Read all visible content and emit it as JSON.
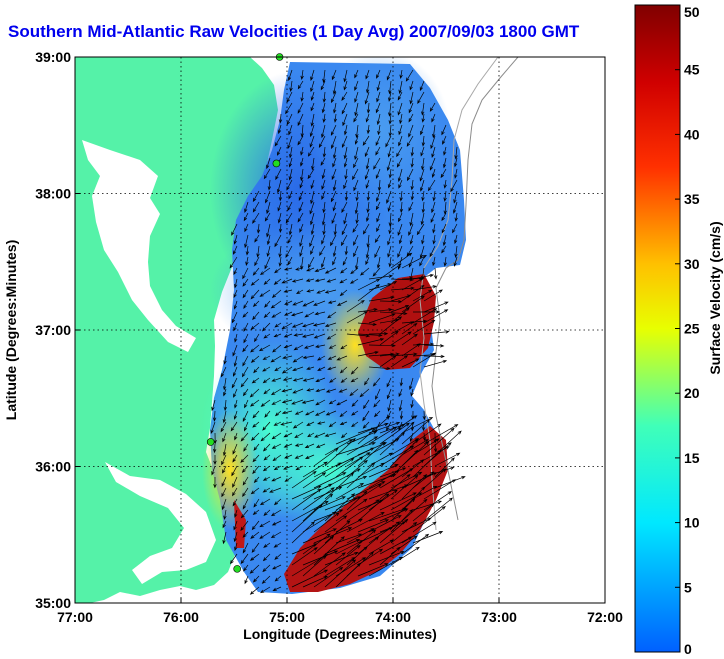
{
  "title": "Southern Mid-Atlantic Raw Velocities (1 Day Avg) 2007/09/03 1800 GMT",
  "x_axis": {
    "label": "Longitude (Degrees:Minutes)",
    "range": [
      -77,
      -72
    ],
    "ticks": [
      {
        "value": -77,
        "label": "77:00"
      },
      {
        "value": -76,
        "label": "76:00"
      },
      {
        "value": -75,
        "label": "75:00"
      },
      {
        "value": -74,
        "label": "74:00"
      },
      {
        "value": -73,
        "label": "73:00"
      },
      {
        "value": -72,
        "label": "72:00"
      }
    ]
  },
  "y_axis": {
    "label": "Latitude (Degrees:Minutes)",
    "range": [
      35,
      39
    ],
    "ticks": [
      {
        "value": 35,
        "label": "35:00"
      },
      {
        "value": 36,
        "label": "36:00"
      },
      {
        "value": 37,
        "label": "37:00"
      },
      {
        "value": 38,
        "label": "38:00"
      },
      {
        "value": 39,
        "label": "39:00"
      }
    ]
  },
  "colorbar": {
    "label": "Surface Velocity (cm/s)",
    "min": 0,
    "max": 50,
    "ticks": [
      0,
      5,
      10,
      15,
      20,
      25,
      30,
      35,
      40,
      45,
      50
    ]
  },
  "colors": {
    "land": "#55f2a8",
    "water": "#ffffff",
    "title": "#0000ee",
    "station": "#22dd22"
  },
  "stations": [
    {
      "lon": -75.07,
      "lat": 39.0
    },
    {
      "lon": -75.1,
      "lat": 38.22
    },
    {
      "lon": -75.72,
      "lat": 36.18
    },
    {
      "lon": -75.47,
      "lat": 35.25
    }
  ],
  "grid": true
}
